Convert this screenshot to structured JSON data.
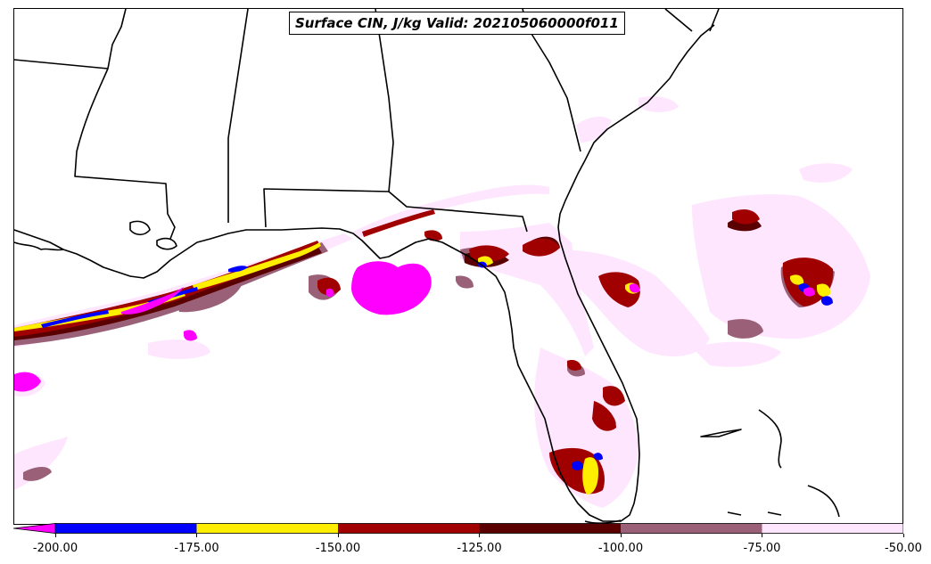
{
  "title": "Surface CIN, J/kg Valid: 202105060000f011",
  "colorbar": {
    "labels": [
      "-200.00",
      "-175.00",
      "-150.00",
      "-125.00",
      "-100.00",
      "-75.00",
      "-50.00"
    ],
    "bins": [
      {
        "range": "< -200",
        "color": "#ff00ff"
      },
      {
        "range": "-200 to -175",
        "color": "#0000ff"
      },
      {
        "range": "-175 to -150",
        "color": "#ffee00"
      },
      {
        "range": "-150 to -125",
        "color": "#a00000"
      },
      {
        "range": "-125 to -100",
        "color": "#5a0000"
      },
      {
        "range": "-100 to -75",
        "color": "#9a6078"
      },
      {
        "range": "-75 to -50",
        "color": "#ffe6ff"
      }
    ]
  },
  "colors": {
    "lt_-200": "#ff00ff",
    "-200_-175": "#0000ff",
    "-175_-150": "#ffee00",
    "-150_-125": "#a00000",
    "-125_-100": "#5a0000",
    "-100_-75": "#9a6078",
    "-75_-50": "#ffe6ff"
  }
}
